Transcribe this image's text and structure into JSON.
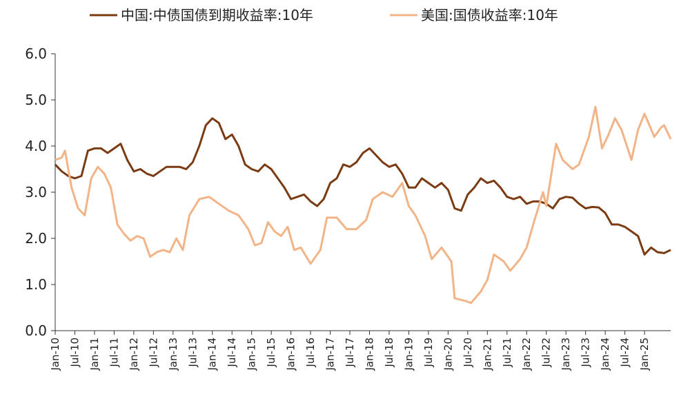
{
  "chart_data": {
    "type": "line",
    "title": "",
    "xlabel": "",
    "ylabel": "",
    "ylim": [
      0,
      6
    ],
    "y_ticks": [
      "0.0",
      "1.0",
      "2.0",
      "3.0",
      "4.0",
      "5.0",
      "6.0"
    ],
    "x_tick_labels": [
      "Jan-10",
      "Jul-10",
      "Jan-11",
      "Jul-11",
      "Jan-12",
      "Jul-12",
      "Jan-13",
      "Jul-13",
      "Jan-14",
      "Jul-14",
      "Jan-15",
      "Jul-15",
      "Jan-16",
      "Jul-16",
      "Jan-17",
      "Jul-17",
      "Jan-18",
      "Jul-18",
      "Jan-19",
      "Jul-19",
      "Jan-20",
      "Jul-20",
      "Jan-21",
      "Jul-21",
      "Jan-22",
      "Jul-22",
      "Jan-23",
      "Jul-23",
      "Jan-24",
      "Jul-24",
      "Jan-25"
    ],
    "x_range": [
      "2010-01",
      "2025-09"
    ],
    "legend_position": "top",
    "grid": false,
    "series": [
      {
        "name": "中国:中债国债到期收益率:10年",
        "color": "#7b3b12",
        "points": [
          [
            "2010-01",
            3.6
          ],
          [
            "2010-03",
            3.45
          ],
          [
            "2010-05",
            3.35
          ],
          [
            "2010-07",
            3.3
          ],
          [
            "2010-09",
            3.35
          ],
          [
            "2010-11",
            3.9
          ],
          [
            "2011-01",
            3.95
          ],
          [
            "2011-03",
            3.95
          ],
          [
            "2011-05",
            3.85
          ],
          [
            "2011-07",
            3.95
          ],
          [
            "2011-09",
            4.05
          ],
          [
            "2011-11",
            3.7
          ],
          [
            "2012-01",
            3.45
          ],
          [
            "2012-03",
            3.5
          ],
          [
            "2012-05",
            3.4
          ],
          [
            "2012-07",
            3.35
          ],
          [
            "2012-09",
            3.45
          ],
          [
            "2012-11",
            3.55
          ],
          [
            "2013-01",
            3.55
          ],
          [
            "2013-03",
            3.55
          ],
          [
            "2013-05",
            3.5
          ],
          [
            "2013-07",
            3.65
          ],
          [
            "2013-09",
            4.0
          ],
          [
            "2013-11",
            4.45
          ],
          [
            "2014-01",
            4.6
          ],
          [
            "2014-03",
            4.5
          ],
          [
            "2014-05",
            4.15
          ],
          [
            "2014-07",
            4.25
          ],
          [
            "2014-09",
            4.0
          ],
          [
            "2014-11",
            3.6
          ],
          [
            "2015-01",
            3.5
          ],
          [
            "2015-03",
            3.45
          ],
          [
            "2015-05",
            3.6
          ],
          [
            "2015-07",
            3.5
          ],
          [
            "2015-09",
            3.3
          ],
          [
            "2015-11",
            3.1
          ],
          [
            "2016-01",
            2.85
          ],
          [
            "2016-03",
            2.9
          ],
          [
            "2016-05",
            2.95
          ],
          [
            "2016-07",
            2.8
          ],
          [
            "2016-09",
            2.7
          ],
          [
            "2016-11",
            2.85
          ],
          [
            "2017-01",
            3.2
          ],
          [
            "2017-03",
            3.3
          ],
          [
            "2017-05",
            3.6
          ],
          [
            "2017-07",
            3.55
          ],
          [
            "2017-09",
            3.65
          ],
          [
            "2017-11",
            3.85
          ],
          [
            "2018-01",
            3.95
          ],
          [
            "2018-03",
            3.8
          ],
          [
            "2018-05",
            3.65
          ],
          [
            "2018-07",
            3.55
          ],
          [
            "2018-09",
            3.6
          ],
          [
            "2018-11",
            3.4
          ],
          [
            "2019-01",
            3.1
          ],
          [
            "2019-03",
            3.1
          ],
          [
            "2019-05",
            3.3
          ],
          [
            "2019-07",
            3.2
          ],
          [
            "2019-09",
            3.1
          ],
          [
            "2019-11",
            3.2
          ],
          [
            "2020-01",
            3.05
          ],
          [
            "2020-03",
            2.65
          ],
          [
            "2020-05",
            2.6
          ],
          [
            "2020-07",
            2.95
          ],
          [
            "2020-09",
            3.1
          ],
          [
            "2020-11",
            3.3
          ],
          [
            "2021-01",
            3.2
          ],
          [
            "2021-03",
            3.25
          ],
          [
            "2021-05",
            3.1
          ],
          [
            "2021-07",
            2.9
          ],
          [
            "2021-09",
            2.85
          ],
          [
            "2021-11",
            2.9
          ],
          [
            "2022-01",
            2.75
          ],
          [
            "2022-03",
            2.8
          ],
          [
            "2022-05",
            2.8
          ],
          [
            "2022-07",
            2.75
          ],
          [
            "2022-09",
            2.65
          ],
          [
            "2022-11",
            2.85
          ],
          [
            "2023-01",
            2.9
          ],
          [
            "2023-03",
            2.88
          ],
          [
            "2023-05",
            2.75
          ],
          [
            "2023-07",
            2.65
          ],
          [
            "2023-09",
            2.68
          ],
          [
            "2023-11",
            2.67
          ],
          [
            "2024-01",
            2.55
          ],
          [
            "2024-03",
            2.3
          ],
          [
            "2024-05",
            2.3
          ],
          [
            "2024-07",
            2.25
          ],
          [
            "2024-09",
            2.15
          ],
          [
            "2024-11",
            2.05
          ],
          [
            "2025-01",
            1.65
          ],
          [
            "2025-03",
            1.8
          ],
          [
            "2025-05",
            1.7
          ],
          [
            "2025-07",
            1.68
          ],
          [
            "2025-09",
            1.75
          ]
        ]
      },
      {
        "name": "美国:国债收益率:10年",
        "color": "#f2b487",
        "points": [
          [
            "2010-01",
            3.7
          ],
          [
            "2010-03",
            3.75
          ],
          [
            "2010-04",
            3.9
          ],
          [
            "2010-06",
            3.1
          ],
          [
            "2010-08",
            2.65
          ],
          [
            "2010-10",
            2.5
          ],
          [
            "2010-12",
            3.3
          ],
          [
            "2011-02",
            3.55
          ],
          [
            "2011-04",
            3.4
          ],
          [
            "2011-06",
            3.1
          ],
          [
            "2011-08",
            2.3
          ],
          [
            "2011-10",
            2.1
          ],
          [
            "2011-12",
            1.95
          ],
          [
            "2012-02",
            2.05
          ],
          [
            "2012-04",
            2.0
          ],
          [
            "2012-06",
            1.6
          ],
          [
            "2012-08",
            1.7
          ],
          [
            "2012-10",
            1.75
          ],
          [
            "2012-12",
            1.7
          ],
          [
            "2013-02",
            2.0
          ],
          [
            "2013-04",
            1.75
          ],
          [
            "2013-06",
            2.5
          ],
          [
            "2013-09",
            2.85
          ],
          [
            "2013-12",
            2.9
          ],
          [
            "2014-03",
            2.75
          ],
          [
            "2014-06",
            2.6
          ],
          [
            "2014-09",
            2.5
          ],
          [
            "2014-12",
            2.2
          ],
          [
            "2015-02",
            1.85
          ],
          [
            "2015-04",
            1.9
          ],
          [
            "2015-06",
            2.35
          ],
          [
            "2015-08",
            2.15
          ],
          [
            "2015-10",
            2.05
          ],
          [
            "2015-12",
            2.25
          ],
          [
            "2016-02",
            1.75
          ],
          [
            "2016-04",
            1.8
          ],
          [
            "2016-07",
            1.45
          ],
          [
            "2016-10",
            1.75
          ],
          [
            "2016-12",
            2.45
          ],
          [
            "2017-03",
            2.45
          ],
          [
            "2017-06",
            2.2
          ],
          [
            "2017-09",
            2.2
          ],
          [
            "2017-12",
            2.4
          ],
          [
            "2018-02",
            2.85
          ],
          [
            "2018-05",
            3.0
          ],
          [
            "2018-08",
            2.9
          ],
          [
            "2018-11",
            3.2
          ],
          [
            "2019-01",
            2.7
          ],
          [
            "2019-03",
            2.5
          ],
          [
            "2019-06",
            2.05
          ],
          [
            "2019-08",
            1.55
          ],
          [
            "2019-11",
            1.8
          ],
          [
            "2020-02",
            1.5
          ],
          [
            "2020-03",
            0.7
          ],
          [
            "2020-06",
            0.65
          ],
          [
            "2020-08",
            0.6
          ],
          [
            "2020-11",
            0.85
          ],
          [
            "2021-01",
            1.1
          ],
          [
            "2021-03",
            1.65
          ],
          [
            "2021-06",
            1.5
          ],
          [
            "2021-08",
            1.3
          ],
          [
            "2021-11",
            1.55
          ],
          [
            "2022-01",
            1.8
          ],
          [
            "2022-03",
            2.3
          ],
          [
            "2022-06",
            3.0
          ],
          [
            "2022-07",
            2.7
          ],
          [
            "2022-10",
            4.05
          ],
          [
            "2022-12",
            3.7
          ],
          [
            "2023-03",
            3.5
          ],
          [
            "2023-05",
            3.6
          ],
          [
            "2023-08",
            4.2
          ],
          [
            "2023-10",
            4.85
          ],
          [
            "2023-12",
            3.95
          ],
          [
            "2024-02",
            4.25
          ],
          [
            "2024-04",
            4.6
          ],
          [
            "2024-06",
            4.35
          ],
          [
            "2024-09",
            3.7
          ],
          [
            "2024-11",
            4.35
          ],
          [
            "2025-01",
            4.7
          ],
          [
            "2025-04",
            4.2
          ],
          [
            "2025-06",
            4.4
          ],
          [
            "2025-07",
            4.45
          ],
          [
            "2025-09",
            4.15
          ]
        ]
      }
    ]
  }
}
